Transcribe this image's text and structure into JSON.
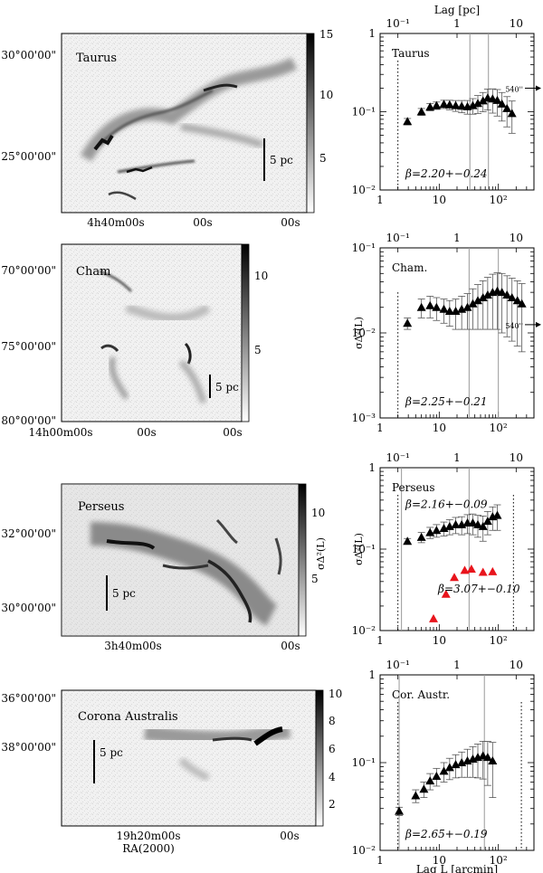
{
  "maps": [
    {
      "id": "taurus",
      "name": "Taurus",
      "dec_ticks": [
        "30°00'00\"",
        "25°00'00\""
      ],
      "ra_ticks": [
        "4h40m00s",
        "00s",
        "00s"
      ],
      "colorbar_ticks": [
        "15",
        "10",
        "5"
      ],
      "scalebar_label": "5 pc"
    },
    {
      "id": "cham",
      "name": "Cham",
      "dec_ticks": [
        "70°00'00\"",
        "75°00'00\"",
        "80°00'00\""
      ],
      "ra_ticks": [
        "14h00m00s",
        "00s",
        "00s"
      ],
      "colorbar_ticks": [
        "10",
        "5"
      ],
      "scalebar_label": "5 pc"
    },
    {
      "id": "perseus",
      "name": "Perseus",
      "dec_ticks": [
        "32°00'00\"",
        "30°00'00\""
      ],
      "ra_ticks": [
        "3h40m00s",
        "00s"
      ],
      "colorbar_ticks": [
        "10",
        "5"
      ],
      "scalebar_label": "5 pc"
    },
    {
      "id": "cora",
      "name": "Corona Australis",
      "dec_ticks": [
        "36°00'00\"",
        "38°00'00\""
      ],
      "ra_ticks": [
        "19h20m00s",
        "00s"
      ],
      "colorbar_ticks": [
        "10",
        "8",
        "6",
        "4",
        "2"
      ],
      "scalebar_label": "5 pc",
      "xlabel": "RA(2000)"
    }
  ],
  "shared_labels": {
    "top_axis_label": "Lag [pc]",
    "bottom_axis_label": "Lag L [arcmin]",
    "y_label": "σΔ²(L)"
  },
  "chart_data": [
    {
      "type": "scatter",
      "panel_label": "Taurus",
      "x_scale": "log",
      "y_scale": "log",
      "xlim": [
        1,
        400
      ],
      "ylim": [
        0.01,
        1
      ],
      "x_tick_labels": [
        "1",
        "10",
        "10²"
      ],
      "y_tick_labels": [
        "1",
        "10⁻¹",
        "10⁻²"
      ],
      "top_axis_label": "Lag [pc]",
      "top_tick_labels": [
        "10⁻¹",
        "1",
        "10"
      ],
      "beta_text": "β=2.20+−0.24",
      "annotation": "540''",
      "series": [
        {
          "color": "#000000",
          "x": [
            2.9,
            5,
            7,
            9,
            12,
            15,
            19,
            24,
            30,
            37,
            45,
            55,
            66,
            80,
            96,
            115,
            140,
            170
          ],
          "y": [
            0.075,
            0.1,
            0.115,
            0.12,
            0.125,
            0.123,
            0.12,
            0.118,
            0.116,
            0.12,
            0.128,
            0.138,
            0.15,
            0.146,
            0.14,
            0.126,
            0.11,
            0.095
          ],
          "err": [
            0.007,
            0.01,
            0.012,
            0.013,
            0.015,
            0.017,
            0.019,
            0.021,
            0.023,
            0.027,
            0.033,
            0.038,
            0.045,
            0.05,
            0.052,
            0.05,
            0.046,
            0.042
          ]
        }
      ]
    },
    {
      "type": "scatter",
      "panel_label": "Cham.",
      "x_scale": "log",
      "y_scale": "log",
      "xlim": [
        1,
        400
      ],
      "ylim": [
        0.001,
        0.1
      ],
      "x_tick_labels": [
        "1",
        "10",
        "10²"
      ],
      "y_tick_labels": [
        "10⁻¹",
        "10⁻²",
        "10⁻³"
      ],
      "top_tick_labels": [
        "10⁻¹",
        "1",
        "10"
      ],
      "beta_text": "β=2.25+−0.21",
      "annotation": "540''",
      "series": [
        {
          "color": "#000000",
          "x": [
            2.9,
            5,
            7,
            9,
            12,
            15,
            19,
            24,
            30,
            37,
            45,
            55,
            66,
            80,
            96,
            115,
            140,
            170,
            210,
            250
          ],
          "y": [
            0.013,
            0.02,
            0.021,
            0.02,
            0.019,
            0.018,
            0.018,
            0.019,
            0.02,
            0.022,
            0.024,
            0.026,
            0.028,
            0.03,
            0.031,
            0.03,
            0.028,
            0.026,
            0.024,
            0.022
          ],
          "err": [
            0.002,
            0.005,
            0.006,
            0.006,
            0.006,
            0.006,
            0.007,
            0.008,
            0.009,
            0.011,
            0.013,
            0.015,
            0.017,
            0.019,
            0.02,
            0.02,
            0.019,
            0.018,
            0.017,
            0.016
          ]
        }
      ]
    },
    {
      "type": "scatter",
      "panel_label": "Perseus",
      "x_scale": "log",
      "y_scale": "log",
      "xlim": [
        1,
        400
      ],
      "ylim": [
        0.01,
        1
      ],
      "x_tick_labels": [
        "1",
        "10",
        "10²"
      ],
      "y_tick_labels": [
        "1",
        "10⁻¹",
        "10⁻²"
      ],
      "top_tick_labels": [
        "10⁻¹",
        "1",
        "10"
      ],
      "ylabel": "σΔ²(L)",
      "beta_texts": [
        "β=2.16+−0.09",
        "β=3.07+−0.10"
      ],
      "series": [
        {
          "color": "#000000",
          "x": [
            2.9,
            5,
            7,
            9,
            12,
            15,
            19,
            24,
            30,
            37,
            45,
            55,
            66,
            80,
            96
          ],
          "y": [
            0.125,
            0.14,
            0.16,
            0.17,
            0.18,
            0.19,
            0.2,
            0.2,
            0.21,
            0.21,
            0.2,
            0.19,
            0.22,
            0.25,
            0.26
          ],
          "err": [
            0.01,
            0.02,
            0.025,
            0.03,
            0.035,
            0.04,
            0.045,
            0.05,
            0.055,
            0.06,
            0.06,
            0.065,
            0.07,
            0.08,
            0.09
          ]
        },
        {
          "color": "#e8141c",
          "x": [
            8,
            13,
            18,
            27,
            35,
            55,
            80
          ],
          "y": [
            0.014,
            0.028,
            0.045,
            0.055,
            0.057,
            0.052,
            0.053
          ]
        }
      ]
    },
    {
      "type": "scatter",
      "panel_label": "Cor. Austr.",
      "x_scale": "log",
      "y_scale": "log",
      "xlim": [
        1,
        400
      ],
      "ylim": [
        0.01,
        1
      ],
      "x_tick_labels": [
        "1",
        "10",
        "10²"
      ],
      "y_tick_labels": [
        "1",
        "10⁻¹",
        "10⁻²"
      ],
      "top_tick_labels": [
        "10⁻¹",
        "1",
        "10"
      ],
      "xlabel": "Lag L [arcmin]",
      "beta_text": "β=2.65+−0.19",
      "series": [
        {
          "color": "#000000",
          "x": [
            2.1,
            4,
            5.5,
            7,
            9,
            12,
            15,
            19,
            24,
            30,
            37,
            45,
            55,
            66,
            80
          ],
          "y": [
            0.028,
            0.042,
            0.05,
            0.062,
            0.07,
            0.08,
            0.088,
            0.095,
            0.1,
            0.105,
            0.11,
            0.115,
            0.12,
            0.115,
            0.105
          ],
          "err": [
            0.003,
            0.007,
            0.01,
            0.013,
            0.016,
            0.02,
            0.024,
            0.028,
            0.032,
            0.037,
            0.042,
            0.048,
            0.055,
            0.06,
            0.065
          ]
        }
      ]
    }
  ]
}
